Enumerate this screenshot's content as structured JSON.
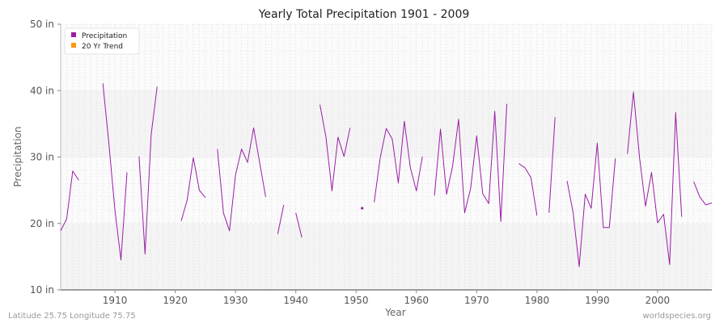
{
  "chart_data": {
    "type": "line",
    "title": "Yearly Total Precipitation 1901 - 2009",
    "xlabel": "Year",
    "ylabel": "Precipitation",
    "xlim": [
      1901,
      2009
    ],
    "ylim": [
      10,
      50
    ],
    "x_ticks": [
      1910,
      1920,
      1930,
      1940,
      1950,
      1960,
      1970,
      1980,
      1990,
      2000
    ],
    "y_ticks": [
      {
        "value": 10,
        "label": "10 in"
      },
      {
        "value": 20,
        "label": "20 in"
      },
      {
        "value": 30,
        "label": "30 in"
      },
      {
        "value": 40,
        "label": "40 in"
      },
      {
        "value": 50,
        "label": "50 in"
      }
    ],
    "grid": true,
    "legend_position": "top-left",
    "series": [
      {
        "name": "Precipitation",
        "color": "#9a1ea6",
        "points": [
          [
            1901,
            18.9
          ],
          [
            1902,
            20.7
          ],
          [
            1903,
            27.9
          ],
          [
            1904,
            26.5
          ],
          [
            1905,
            null
          ],
          [
            1906,
            null
          ],
          [
            1907,
            null
          ],
          [
            1908,
            41.1
          ],
          [
            1909,
            32.0
          ],
          [
            1910,
            22.0
          ],
          [
            1911,
            14.5
          ],
          [
            1912,
            27.7
          ],
          [
            1913,
            null
          ],
          [
            1914,
            30.1
          ],
          [
            1915,
            15.4
          ],
          [
            1916,
            33.3
          ],
          [
            1917,
            40.6
          ],
          [
            1918,
            null
          ],
          [
            1919,
            null
          ],
          [
            1920,
            null
          ],
          [
            1921,
            20.4
          ],
          [
            1922,
            23.6
          ],
          [
            1923,
            29.9
          ],
          [
            1924,
            25.0
          ],
          [
            1925,
            23.9
          ],
          [
            1926,
            null
          ],
          [
            1927,
            31.2
          ],
          [
            1928,
            21.6
          ],
          [
            1929,
            18.9
          ],
          [
            1930,
            27.3
          ],
          [
            1931,
            31.2
          ],
          [
            1932,
            29.2
          ],
          [
            1933,
            34.4
          ],
          [
            1934,
            29.2
          ],
          [
            1935,
            24.0
          ],
          [
            1936,
            null
          ],
          [
            1937,
            18.4
          ],
          [
            1938,
            22.8
          ],
          [
            1939,
            null
          ],
          [
            1940,
            21.6
          ],
          [
            1941,
            17.9
          ],
          [
            1942,
            null
          ],
          [
            1943,
            null
          ],
          [
            1944,
            37.9
          ],
          [
            1945,
            33.0
          ],
          [
            1946,
            24.9
          ],
          [
            1947,
            33.0
          ],
          [
            1948,
            30.1
          ],
          [
            1949,
            34.4
          ],
          [
            1950,
            null
          ],
          [
            1951,
            22.3
          ],
          [
            1952,
            null
          ],
          [
            1953,
            23.2
          ],
          [
            1954,
            29.9
          ],
          [
            1955,
            34.3
          ],
          [
            1956,
            32.7
          ],
          [
            1957,
            26.1
          ],
          [
            1958,
            35.4
          ],
          [
            1959,
            28.4
          ],
          [
            1960,
            24.9
          ],
          [
            1961,
            30.1
          ],
          [
            1962,
            null
          ],
          [
            1963,
            24.2
          ],
          [
            1964,
            34.2
          ],
          [
            1965,
            24.4
          ],
          [
            1966,
            28.6
          ],
          [
            1967,
            35.7
          ],
          [
            1968,
            21.6
          ],
          [
            1969,
            25.3
          ],
          [
            1970,
            33.2
          ],
          [
            1971,
            24.5
          ],
          [
            1972,
            23.0
          ],
          [
            1973,
            36.9
          ],
          [
            1974,
            20.3
          ],
          [
            1975,
            38.0
          ],
          [
            1976,
            null
          ],
          [
            1977,
            29.0
          ],
          [
            1978,
            28.4
          ],
          [
            1979,
            26.9
          ],
          [
            1980,
            21.2
          ],
          [
            1981,
            null
          ],
          [
            1982,
            21.6
          ],
          [
            1983,
            36.0
          ],
          [
            1984,
            null
          ],
          [
            1985,
            26.4
          ],
          [
            1986,
            21.6
          ],
          [
            1987,
            13.5
          ],
          [
            1988,
            24.4
          ],
          [
            1989,
            22.3
          ],
          [
            1990,
            32.1
          ],
          [
            1991,
            19.4
          ],
          [
            1992,
            19.4
          ],
          [
            1993,
            29.8
          ],
          [
            1994,
            null
          ],
          [
            1995,
            30.5
          ],
          [
            1996,
            39.8
          ],
          [
            1997,
            30.0
          ],
          [
            1998,
            22.6
          ],
          [
            1999,
            27.7
          ],
          [
            2000,
            20.1
          ],
          [
            2001,
            21.4
          ],
          [
            2002,
            13.8
          ],
          [
            2003,
            36.7
          ],
          [
            2004,
            21.0
          ],
          [
            2005,
            null
          ],
          [
            2006,
            26.3
          ],
          [
            2007,
            24.0
          ],
          [
            2008,
            22.8
          ],
          [
            2009,
            23.1
          ]
        ]
      },
      {
        "name": "20 Yr Trend",
        "color": "#ff9900",
        "points": []
      }
    ]
  },
  "footer": {
    "left": "Latitude 25.75 Longitude 75.75",
    "right": "worldspecies.org"
  },
  "colors": {
    "band_light": "#f4f4f4",
    "band_white": "#fbfbfb",
    "grid_line": "#e0e0e0",
    "axis_line": "#444444"
  }
}
